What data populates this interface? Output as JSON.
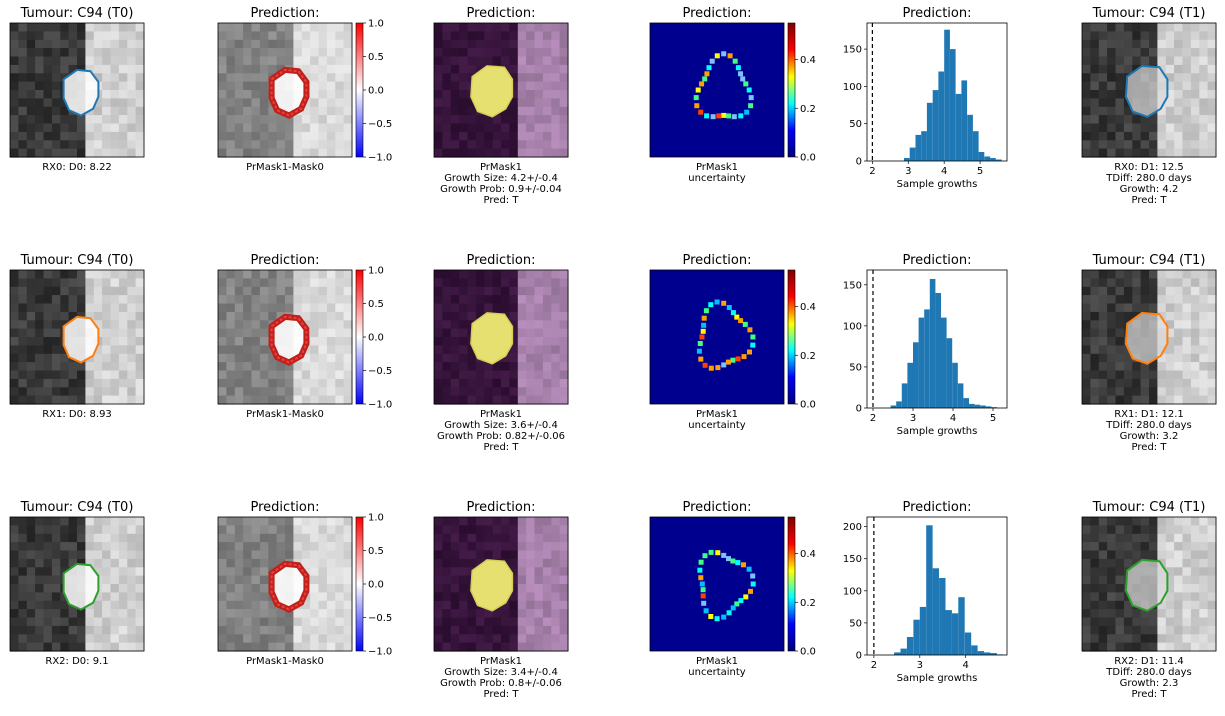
{
  "rows": [
    {
      "t0_title": "Tumour: C94 (T0)",
      "t0_caption": [
        "RX0: D0: 8.22"
      ],
      "diff_title": "Prediction:",
      "diff_caption": [
        "PrMask1-Mask0"
      ],
      "mask_title": "Prediction:",
      "mask_caption": [
        "PrMask1",
        "Growth Size: 4.2+/-0.4",
        "Growth Prob: 0.9+/-0.04",
        "Pred: T"
      ],
      "unc_title": "Prediction:",
      "unc_caption": [
        "PrMask1",
        "uncertainty"
      ],
      "hist_title": "Prediction:",
      "t1_title": "Tumour: C94 (T1)",
      "t1_caption": [
        "RX0: D1: 12.5",
        "TDiff: 280.0 days",
        "Growth: 4.2",
        "Pred: T"
      ],
      "contour_color": "#1f77b4"
    },
    {
      "t0_title": "Tumour: C94 (T0)",
      "t0_caption": [
        "RX1: D0: 8.93"
      ],
      "diff_title": "Prediction:",
      "diff_caption": [
        "PrMask1-Mask0"
      ],
      "mask_title": "Prediction:",
      "mask_caption": [
        "PrMask1",
        "Growth Size: 3.6+/-0.4",
        "Growth Prob: 0.82+/-0.06",
        "Pred: T"
      ],
      "unc_title": "Prediction:",
      "unc_caption": [
        "PrMask1",
        "uncertainty"
      ],
      "hist_title": "Prediction:",
      "t1_title": "Tumour: C94 (T1)",
      "t1_caption": [
        "RX1: D1: 12.1",
        "TDiff: 280.0 days",
        "Growth: 3.2",
        "Pred: T"
      ],
      "contour_color": "#ff7f0e"
    },
    {
      "t0_title": "Tumour: C94 (T0)",
      "t0_caption": [
        "RX2: D0: 9.1"
      ],
      "diff_title": "Prediction:",
      "diff_caption": [
        "PrMask1-Mask0"
      ],
      "mask_title": "Prediction:",
      "mask_caption": [
        "PrMask1",
        "Growth Size: 3.4+/-0.4",
        "Growth Prob: 0.8+/-0.06",
        "Pred: T"
      ],
      "unc_title": "Prediction:",
      "unc_caption": [
        "PrMask1",
        "uncertainty"
      ],
      "hist_title": "Prediction:",
      "t1_title": "Tumour: C94 (T1)",
      "t1_caption": [
        "RX2: D1: 11.4",
        "TDiff: 280.0 days",
        "Growth: 2.3",
        "Pred: T"
      ],
      "contour_color": "#2ca02c"
    }
  ],
  "colorbars": {
    "diff": {
      "ticks": [
        "1.0",
        "0.5",
        "0.0",
        "−0.5",
        "−1.0"
      ],
      "colors": [
        "#ff0000",
        "#ffffff",
        "#0000ff"
      ]
    },
    "unc": {
      "ticks": [
        "0.4",
        "0.2",
        "0.0"
      ],
      "range": [
        0,
        0.55
      ],
      "colors": [
        "#800000",
        "#ff0000",
        "#ffff00",
        "#00ffff",
        "#0000ff",
        "#000080"
      ]
    }
  },
  "chart_data": [
    {
      "type": "bar",
      "xlabel": "Sample growths",
      "xticks": [
        2,
        3,
        4,
        5
      ],
      "xlim": [
        1.85,
        5.75
      ],
      "yticks": [
        0,
        50,
        100,
        150
      ],
      "ylim": [
        0,
        185
      ],
      "vline_x": 2,
      "bin_width": 0.16,
      "bins": [
        2.88,
        3.04,
        3.2,
        3.36,
        3.52,
        3.68,
        3.84,
        4.0,
        4.16,
        4.32,
        4.48,
        4.64,
        4.8,
        4.96,
        5.12,
        5.28,
        5.44
      ],
      "values": [
        4,
        18,
        35,
        40,
        78,
        95,
        120,
        176,
        150,
        90,
        108,
        62,
        40,
        12,
        6,
        4,
        2
      ],
      "color": "#1f77b4"
    },
    {
      "type": "bar",
      "xlabel": "Sample growths",
      "xticks": [
        2,
        3,
        4,
        5
      ],
      "xlim": [
        1.85,
        5.35
      ],
      "yticks": [
        0,
        50,
        100,
        150
      ],
      "ylim": [
        0,
        168
      ],
      "vline_x": 2,
      "bin_width": 0.14,
      "bins": [
        2.44,
        2.58,
        2.72,
        2.86,
        3.0,
        3.14,
        3.28,
        3.42,
        3.56,
        3.7,
        3.84,
        3.98,
        4.12,
        4.26,
        4.4,
        4.54,
        4.68,
        4.82,
        4.96
      ],
      "values": [
        3,
        8,
        30,
        55,
        80,
        110,
        120,
        157,
        140,
        110,
        85,
        55,
        30,
        12,
        5,
        4,
        3,
        2,
        1
      ],
      "color": "#1f77b4"
    },
    {
      "type": "bar",
      "xlabel": "Sample growths",
      "xticks": [
        2,
        3,
        4
      ],
      "xlim": [
        1.85,
        4.9
      ],
      "yticks": [
        0,
        50,
        100,
        150,
        200
      ],
      "ylim": [
        0,
        215
      ],
      "vline_x": 2,
      "bin_width": 0.14,
      "bins": [
        2.44,
        2.58,
        2.72,
        2.86,
        3.0,
        3.14,
        3.28,
        3.42,
        3.56,
        3.7,
        3.84,
        3.98,
        4.12,
        4.26,
        4.4,
        4.54,
        4.68
      ],
      "values": [
        4,
        10,
        28,
        55,
        75,
        202,
        135,
        120,
        70,
        65,
        90,
        35,
        15,
        6,
        4,
        3,
        1
      ],
      "color": "#1f77b4"
    }
  ]
}
